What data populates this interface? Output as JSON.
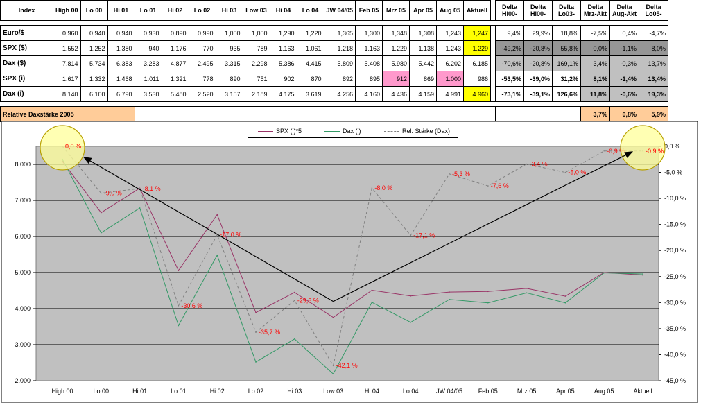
{
  "table": {
    "corner": "Index",
    "headers": [
      "High 00",
      "Lo 00",
      "Hi 01",
      "Lo 01",
      "Hi 02",
      "Lo 02",
      "Hi 03",
      "Low 03",
      "Hi 04",
      "Lo 04",
      "JW 04/05",
      "Feb 05",
      "Mrz 05",
      "Apr 05",
      "Aug 05",
      "Aktuell"
    ],
    "delta_headers": [
      {
        "l1": "Delta",
        "l2": "Hi00-"
      },
      {
        "l1": "Delta",
        "l2": "Hi00-"
      },
      {
        "l1": "Delta",
        "l2": "Lo03-"
      },
      {
        "l1": "Delta",
        "l2": "Mrz-Akt"
      },
      {
        "l1": "Delta",
        "l2": "Aug-Akt"
      },
      {
        "l1": "Delta",
        "l2": "Lo05-"
      }
    ],
    "rows": [
      {
        "label": "Euro/$",
        "values": [
          "0,960",
          "0,940",
          "0,940",
          "0,930",
          "0,890",
          "0,990",
          "1,050",
          "1,050",
          "1,290",
          "1,220",
          "1,365",
          "1,300",
          "1,348",
          "1,308",
          "1,243",
          "1,247"
        ],
        "deltas": [
          "9,4%",
          "29,9%",
          "18,8%",
          "-7,5%",
          "0,4%",
          "-4,7%"
        ]
      },
      {
        "label": "SPX ($)",
        "values": [
          "1.552",
          "1.252",
          "1.380",
          "940",
          "1.176",
          "770",
          "935",
          "789",
          "1.163",
          "1.061",
          "1.218",
          "1.163",
          "1.229",
          "1.138",
          "1.243",
          "1.229"
        ],
        "deltas": [
          "-49,2%",
          "-20,8%",
          "55,8%",
          "0,0%",
          "-1,1%",
          "8,0%"
        ]
      },
      {
        "label": "Dax ($)",
        "values": [
          "7.814",
          "5.734",
          "6.383",
          "3.283",
          "4.877",
          "2.495",
          "3.315",
          "2.298",
          "5.386",
          "4.415",
          "5.809",
          "5.408",
          "5.980",
          "5.442",
          "6.202",
          "6.185"
        ],
        "deltas": [
          "-70,6%",
          "-20,8%",
          "169,1%",
          "3,4%",
          "-0,3%",
          "13,7%"
        ]
      },
      {
        "label": "SPX (i)",
        "values": [
          "1.617",
          "1.332",
          "1.468",
          "1.011",
          "1.321",
          "778",
          "890",
          "751",
          "902",
          "870",
          "892",
          "895",
          "912",
          "869",
          "1.000",
          "986"
        ],
        "deltas": [
          "-53,5%",
          "-39,0%",
          "31,2%",
          "8,1%",
          "-1,4%",
          "13,4%"
        ]
      },
      {
        "label": "Dax (i)",
        "values": [
          "8.140",
          "6.100",
          "6.790",
          "3.530",
          "5.480",
          "2.520",
          "3.157",
          "2.189",
          "4.175",
          "3.619",
          "4.256",
          "4.160",
          "4.436",
          "4.159",
          "4.991",
          "4.960"
        ],
        "deltas": [
          "-73,1%",
          "-39,1%",
          "126,6%",
          "11,8%",
          "-0,6%",
          "19,3%"
        ]
      }
    ],
    "relative": {
      "label": "Relative Daxstärke 2005",
      "values": [
        "3,7%",
        "0,8%",
        "5,9%"
      ]
    }
  },
  "chart_data": {
    "type": "line",
    "categories": [
      "High 00",
      "Lo 00",
      "Hi 01",
      "Lo 01",
      "Hi 02",
      "Lo 02",
      "Hi 03",
      "Low 03",
      "Hi 04",
      "Lo 04",
      "JW 04/05",
      "Feb 05",
      "Mrz 05",
      "Apr 05",
      "Aug 05",
      "Aktuell"
    ],
    "series": [
      {
        "name": "SPX (i)*5",
        "axis": "left",
        "color": "#993366",
        "dashed": false,
        "values": [
          8085,
          6660,
          7340,
          5055,
          6605,
          3890,
          4450,
          3755,
          4510,
          4350,
          4460,
          4475,
          4560,
          4345,
          5000,
          4930
        ]
      },
      {
        "name": "Dax (i)",
        "axis": "left",
        "color": "#339966",
        "dashed": false,
        "values": [
          8140,
          6100,
          6790,
          3530,
          5480,
          2520,
          3157,
          2189,
          4175,
          3619,
          4256,
          4160,
          4436,
          4159,
          4991,
          4960
        ]
      },
      {
        "name": "Rel. Stärke (Dax)",
        "axis": "right",
        "color": "#808080",
        "dashed": true,
        "values": [
          0.0,
          -9.0,
          -8.1,
          -30.6,
          -17.0,
          -35.7,
          -29.6,
          -42.1,
          -8.0,
          -17.1,
          -5.3,
          -7.6,
          -3.4,
          -5.0,
          -0.9,
          -0.9
        ]
      }
    ],
    "annotations": [
      {
        "i": 0,
        "text": "0,0 %"
      },
      {
        "i": 1,
        "text": "-9,0 %"
      },
      {
        "i": 2,
        "text": "-8,1 %"
      },
      {
        "i": 3,
        "text": "-30,6 %"
      },
      {
        "i": 4,
        "text": "-17,0 %"
      },
      {
        "i": 5,
        "text": "-35,7 %"
      },
      {
        "i": 6,
        "text": "-29,6 %"
      },
      {
        "i": 7,
        "text": "-42,1 %"
      },
      {
        "i": 8,
        "text": "-8,0 %"
      },
      {
        "i": 9,
        "text": "-17,1 %"
      },
      {
        "i": 10,
        "text": "-5,3 %"
      },
      {
        "i": 11,
        "text": "-7,6 %"
      },
      {
        "i": 12,
        "text": "-3,4 %"
      },
      {
        "i": 13,
        "text": "-5,0 %"
      },
      {
        "i": 14,
        "text": "-0,9 %"
      },
      {
        "i": 15,
        "text": "-0,9 %"
      }
    ],
    "y_left": {
      "min": 2000,
      "max": 8500,
      "ticks": [
        2000,
        3000,
        4000,
        5000,
        6000,
        7000,
        8000
      ],
      "tick_labels": [
        "2.000",
        "3.000",
        "4.000",
        "5.000",
        "6.000",
        "7.000",
        "8.000"
      ]
    },
    "y_right": {
      "min": -45,
      "max": 0,
      "ticks": [
        0,
        -5,
        -10,
        -15,
        -20,
        -25,
        -30,
        -35,
        -40,
        -45
      ],
      "tick_labels": [
        "0,0 %",
        "-5,0 %",
        "-10,0 %",
        "-15,0 %",
        "-20,0 %",
        "-25,0 %",
        "-30,0 %",
        "-35,0 %",
        "-40,0 %",
        "-45,0 %"
      ]
    },
    "grid": true,
    "legend": "top-center",
    "arrows": [
      {
        "from_i": 7,
        "from_val": 4200,
        "to_i": 1,
        "to_val": 8200
      },
      {
        "from_i": 7,
        "from_val": 4200,
        "to_i": 15,
        "to_val": 8350
      }
    ],
    "circles": [
      {
        "i": 0
      },
      {
        "i": 15
      }
    ]
  }
}
